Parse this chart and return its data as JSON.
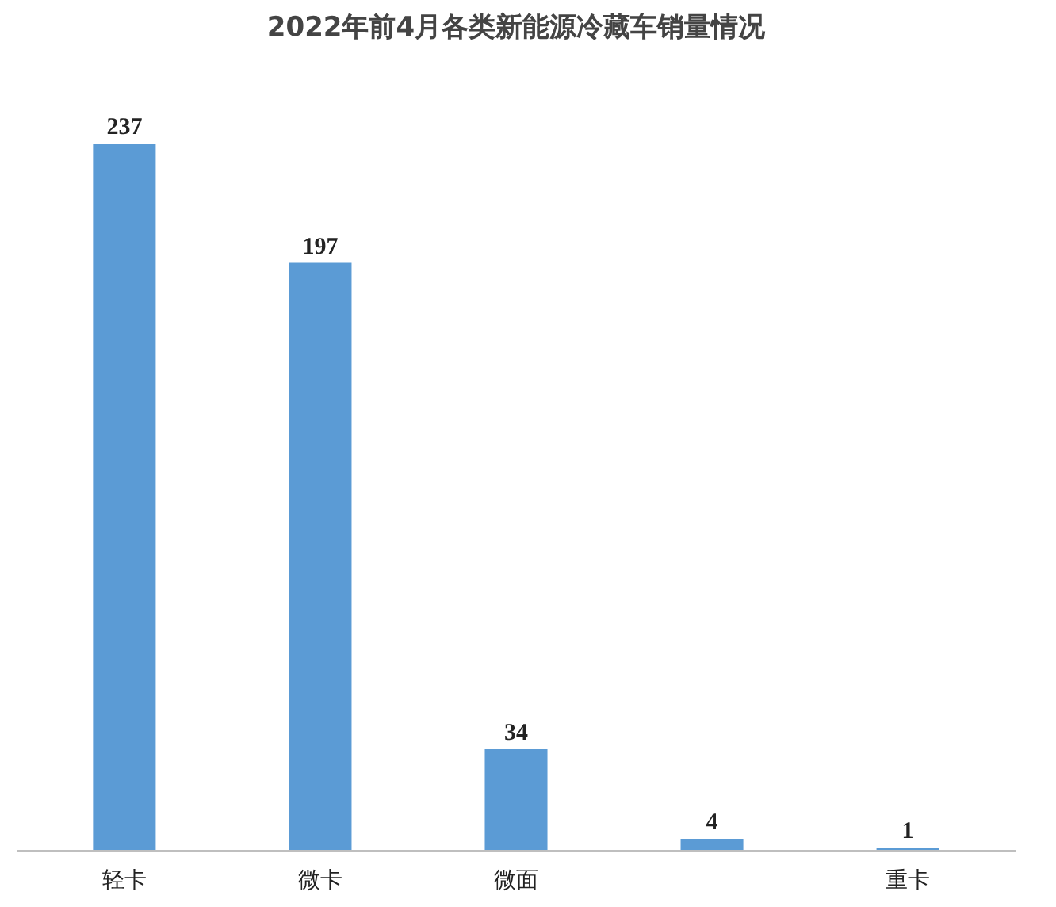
{
  "chart_data": {
    "type": "bar",
    "title": "2022年前4月各类新能源冷藏车销量情况",
    "categories": [
      "轻卡",
      "微卡",
      "微面",
      null,
      "重卡"
    ],
    "values": [
      237,
      197,
      34,
      4,
      1
    ],
    "color": "#5b9bd5",
    "data_labels": true,
    "grid": false
  }
}
